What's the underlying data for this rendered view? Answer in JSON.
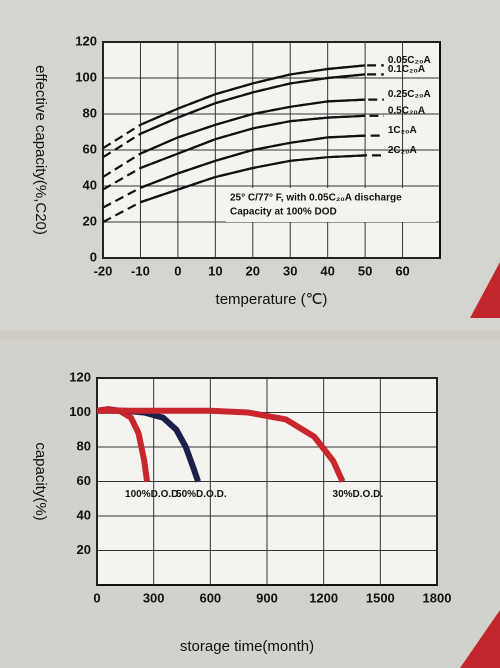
{
  "chart_data": [
    {
      "type": "line",
      "y_label": "effective capacity(%,C20)",
      "x_label": "temperature (℃)",
      "annotations": [
        "25° C/77° F, with 0.05C₂₀A discharge",
        "Capacity at 100% DOD"
      ],
      "x": [
        -20,
        -10,
        0,
        10,
        20,
        30,
        40,
        50,
        55
      ],
      "series": [
        {
          "name": "0.05C₂₀A",
          "color": "#111111",
          "values": [
            61,
            74,
            83,
            91,
            97,
            102,
            105,
            107,
            107
          ]
        },
        {
          "name": "0.1C₂₀A",
          "color": "#111111",
          "values": [
            56,
            69,
            78,
            86,
            92,
            97,
            100,
            102,
            102
          ]
        },
        {
          "name": "0.25C₂₀A",
          "color": "#111111",
          "values": [
            45,
            58,
            67,
            74,
            80,
            84,
            87,
            88,
            88
          ]
        },
        {
          "name": "0.5C₂₀A",
          "color": "#111111",
          "values": [
            38,
            50,
            58,
            66,
            72,
            76,
            78,
            79,
            79
          ]
        },
        {
          "name": "1C₂₀A",
          "color": "#111111",
          "values": [
            28,
            39,
            47,
            54,
            60,
            64,
            67,
            68,
            68
          ]
        },
        {
          "name": "2C₂₀A",
          "color": "#111111",
          "values": [
            20,
            31,
            38,
            45,
            50,
            54,
            56,
            57,
            57
          ]
        }
      ],
      "xlim": [
        -20,
        70
      ],
      "xticks": [
        -20,
        -10,
        0,
        10,
        20,
        30,
        40,
        50,
        60
      ],
      "ylim": [
        0,
        120
      ],
      "yticks": [
        0,
        20,
        40,
        60,
        80,
        100,
        120
      ],
      "grid": true
    },
    {
      "type": "line",
      "y_label": "capacity(%)",
      "x_label": "storage time(month)",
      "series": [
        {
          "name": "100%D.O.D.",
          "color": "#c8262c",
          "x": [
            0,
            60,
            120,
            180,
            220,
            250,
            265
          ],
          "values": [
            101,
            102,
            101,
            97,
            88,
            72,
            60
          ]
        },
        {
          "name": "50%D.O.D.",
          "color": "#1c1f4a",
          "x": [
            0,
            150,
            250,
            350,
            420,
            470,
            510,
            535
          ],
          "values": [
            101,
            101,
            100,
            97,
            90,
            80,
            68,
            60
          ]
        },
        {
          "name": "30%D.O.D.",
          "color": "#c8262c",
          "x": [
            0,
            300,
            600,
            800,
            1000,
            1150,
            1250,
            1300
          ],
          "values": [
            101,
            101,
            101,
            100,
            96,
            86,
            72,
            60
          ]
        }
      ],
      "xlim": [
        0,
        1800
      ],
      "xticks": [
        0,
        300,
        600,
        900,
        1200,
        1500,
        1800
      ],
      "ylim": [
        0,
        120
      ],
      "yticks": [
        20,
        40,
        60,
        80,
        100,
        120
      ],
      "grid": true
    }
  ]
}
